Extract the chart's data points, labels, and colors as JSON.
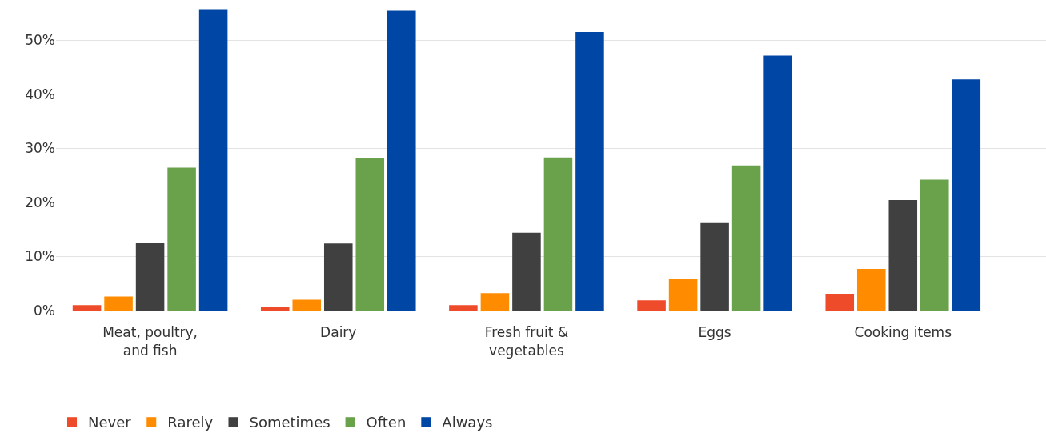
{
  "chart_data": {
    "type": "bar",
    "categories": [
      "Meat, poultry,\nand fish",
      "Dairy",
      "Fresh fruit &\nvegetables",
      "Eggs",
      "Cooking items"
    ],
    "series": [
      {
        "name": "Never",
        "color": "#ee4b2b",
        "values": [
          1.0,
          0.7,
          1.0,
          1.9,
          3.1
        ]
      },
      {
        "name": "Rarely",
        "color": "#ff8c00",
        "values": [
          2.6,
          2.0,
          3.2,
          5.8,
          7.7
        ]
      },
      {
        "name": "Sometimes",
        "color": "#404040",
        "values": [
          12.5,
          12.4,
          14.4,
          16.3,
          20.4
        ]
      },
      {
        "name": "Often",
        "color": "#6aa24b",
        "values": [
          26.4,
          28.1,
          28.3,
          26.8,
          24.2
        ]
      },
      {
        "name": "Always",
        "color": "#0046a5",
        "values": [
          55.7,
          55.4,
          51.5,
          47.1,
          42.7
        ]
      }
    ],
    "ylim": [
      0,
      57.4
    ],
    "yticks": [
      {
        "value": 0,
        "label": "0%"
      },
      {
        "value": 10,
        "label": "10%"
      },
      {
        "value": 20,
        "label": "20%"
      },
      {
        "value": 30,
        "label": "30%"
      },
      {
        "value": 40,
        "label": "40%"
      },
      {
        "value": 50,
        "label": "50%"
      }
    ],
    "grid": "y",
    "legend": "bottom left"
  }
}
